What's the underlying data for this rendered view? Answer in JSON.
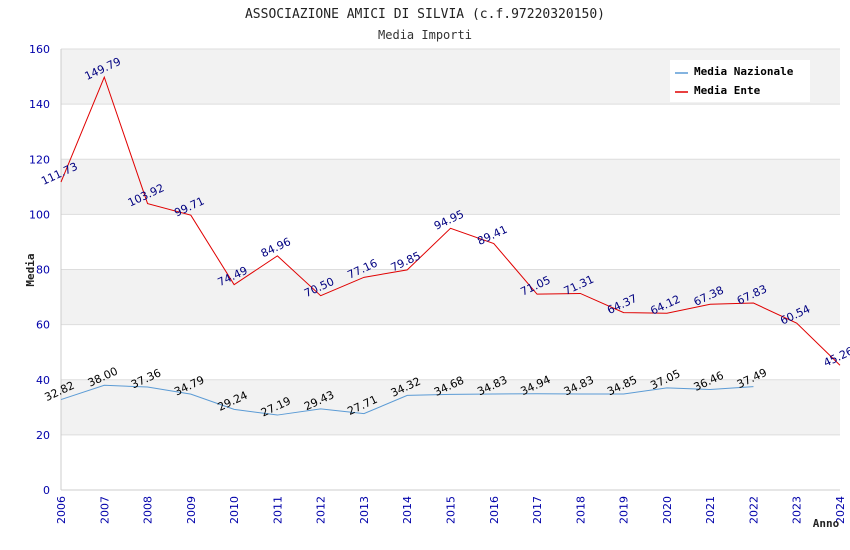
{
  "chart_data": {
    "type": "line",
    "title": "ASSOCIAZIONE AMICI DI SILVIA (c.f.97220320150)",
    "subtitle": "Media Importi",
    "xlabel": "Anno",
    "ylabel": "Media",
    "ylim": [
      0,
      160
    ],
    "yticks": [
      0,
      20,
      40,
      60,
      80,
      100,
      120,
      140,
      160
    ],
    "x": [
      "2006",
      "2007",
      "2008",
      "2009",
      "2010",
      "2011",
      "2012",
      "2013",
      "2014",
      "2015",
      "2016",
      "2017",
      "2018",
      "2019",
      "2020",
      "2021",
      "2022",
      "2023",
      "2024"
    ],
    "legend_position": "top-right",
    "series": [
      {
        "name": "Media Nazionale",
        "color": "#5b9bd5",
        "label_color": "#000000",
        "values": [
          32.82,
          38.0,
          37.36,
          34.79,
          29.24,
          27.19,
          29.43,
          27.71,
          34.32,
          34.68,
          34.83,
          34.94,
          34.83,
          34.85,
          37.05,
          36.46,
          37.49,
          null,
          null
        ],
        "labels": [
          "32.82",
          "38.00",
          "37.36",
          "34.79",
          "29.24",
          "27.19",
          "29.43",
          "27.71",
          "34.32",
          "34.68",
          "34.83",
          "34.94",
          "34.83",
          "34.85",
          "37.05",
          "36.46",
          "37.49",
          null,
          null
        ]
      },
      {
        "name": "Media Ente",
        "color": "#e00000",
        "label_color": "#000080",
        "values": [
          111.73,
          149.79,
          103.92,
          99.71,
          74.49,
          84.96,
          70.5,
          77.16,
          79.85,
          94.95,
          89.41,
          71.05,
          71.31,
          64.37,
          64.12,
          67.38,
          67.83,
          60.54,
          45.26
        ],
        "labels": [
          "111.73",
          "149.79",
          "103.92",
          "99.71",
          "74.49",
          "84.96",
          "70.50",
          "77.16",
          "79.85",
          "94.95",
          "89.41",
          "71.05",
          "71.31",
          "64.37",
          "64.12",
          "67.38",
          "67.83",
          "60.54",
          "45.26"
        ]
      }
    ]
  }
}
